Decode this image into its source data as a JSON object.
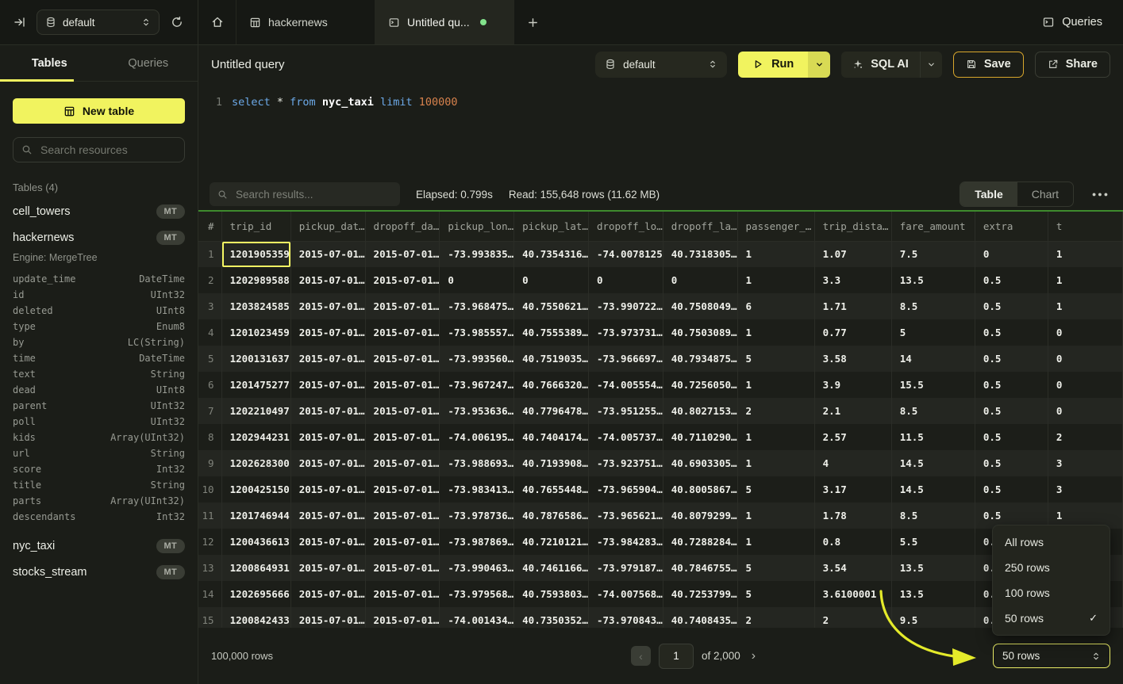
{
  "topbar": {
    "database_selector": "default",
    "tabs": [
      {
        "label": "hackernews"
      },
      {
        "label": "Untitled qu...",
        "active": true,
        "unsaved_dot": true
      }
    ],
    "queries_link": "Queries"
  },
  "sidebar": {
    "tabs": [
      "Tables",
      "Queries"
    ],
    "new_table_label": "New table",
    "search_placeholder": "Search resources",
    "section_label": "Tables (4)",
    "tables": [
      {
        "name": "cell_towers",
        "badge": "MT"
      },
      {
        "name": "hackernews",
        "badge": "MT",
        "engine": "Engine: MergeTree",
        "columns": [
          [
            "update_time",
            "DateTime"
          ],
          [
            "id",
            "UInt32"
          ],
          [
            "deleted",
            "UInt8"
          ],
          [
            "type",
            "Enum8"
          ],
          [
            "by",
            "LC(String)"
          ],
          [
            "time",
            "DateTime"
          ],
          [
            "text",
            "String"
          ],
          [
            "dead",
            "UInt8"
          ],
          [
            "parent",
            "UInt32"
          ],
          [
            "poll",
            "UInt32"
          ],
          [
            "kids",
            "Array(UInt32)"
          ],
          [
            "url",
            "String"
          ],
          [
            "score",
            "Int32"
          ],
          [
            "title",
            "String"
          ],
          [
            "parts",
            "Array(UInt32)"
          ],
          [
            "descendants",
            "Int32"
          ]
        ]
      },
      {
        "name": "nyc_taxi",
        "badge": "MT"
      },
      {
        "name": "stocks_stream",
        "badge": "MT"
      }
    ]
  },
  "query": {
    "title": "Untitled query",
    "database": "default",
    "run_label": "Run",
    "sql_ai_label": "SQL AI",
    "save_label": "Save",
    "share_label": "Share",
    "editor": {
      "line_number": "1",
      "tokens": [
        {
          "text": "select ",
          "type": "keyword"
        },
        {
          "text": "* ",
          "type": "plain"
        },
        {
          "text": "from ",
          "type": "keyword"
        },
        {
          "text": "nyc_taxi ",
          "type": "identifier"
        },
        {
          "text": "limit ",
          "type": "keyword"
        },
        {
          "text": "100000",
          "type": "number"
        }
      ]
    }
  },
  "results": {
    "search_placeholder": "Search results...",
    "elapsed": "Elapsed: 0.799s",
    "read": "Read: 155,648 rows (11.62 MB)",
    "view_toggle": [
      "Table",
      "Chart"
    ],
    "active_view": "Table",
    "table": {
      "headers": [
        "#",
        "trip_id",
        "pickup_dat…",
        "dropoff_da…",
        "pickup_lon…",
        "pickup_lat…",
        "dropoff_lo…",
        "dropoff_la…",
        "passenger_…",
        "trip_dista…",
        "fare_amount",
        "extra",
        "t"
      ],
      "selected_cell": {
        "row": 0,
        "col": 0
      },
      "rows": [
        [
          "1201905359",
          "2015-07-01…",
          "2015-07-01…",
          "-73.993835…",
          "40.7354316…",
          "-74.0078125",
          "40.7318305…",
          "1",
          "1.07",
          "7.5",
          "0",
          "1"
        ],
        [
          "1202989588",
          "2015-07-01…",
          "2015-07-01…",
          "0",
          "0",
          "0",
          "0",
          "1",
          "3.3",
          "13.5",
          "0.5",
          "1"
        ],
        [
          "1203824585",
          "2015-07-01…",
          "2015-07-01…",
          "-73.968475…",
          "40.7550621…",
          "-73.990722…",
          "40.7508049…",
          "6",
          "1.71",
          "8.5",
          "0.5",
          "1"
        ],
        [
          "1201023459",
          "2015-07-01…",
          "2015-07-01…",
          "-73.985557…",
          "40.7555389…",
          "-73.973731…",
          "40.7503089…",
          "1",
          "0.77",
          "5",
          "0.5",
          "0"
        ],
        [
          "1200131637",
          "2015-07-01…",
          "2015-07-01…",
          "-73.993560…",
          "40.7519035…",
          "-73.966697…",
          "40.7934875…",
          "5",
          "3.58",
          "14",
          "0.5",
          "0"
        ],
        [
          "1201475277",
          "2015-07-01…",
          "2015-07-01…",
          "-73.967247…",
          "40.7666320…",
          "-74.005554…",
          "40.7256050…",
          "1",
          "3.9",
          "15.5",
          "0.5",
          "0"
        ],
        [
          "1202210497",
          "2015-07-01…",
          "2015-07-01…",
          "-73.953636…",
          "40.7796478…",
          "-73.951255…",
          "40.8027153…",
          "2",
          "2.1",
          "8.5",
          "0.5",
          "0"
        ],
        [
          "1202944231",
          "2015-07-01…",
          "2015-07-01…",
          "-74.006195…",
          "40.7404174…",
          "-74.005737…",
          "40.7110290…",
          "1",
          "2.57",
          "11.5",
          "0.5",
          "2"
        ],
        [
          "1202628300",
          "2015-07-01…",
          "2015-07-01…",
          "-73.988693…",
          "40.7193908…",
          "-73.923751…",
          "40.6903305…",
          "1",
          "4",
          "14.5",
          "0.5",
          "3"
        ],
        [
          "1200425150",
          "2015-07-01…",
          "2015-07-01…",
          "-73.983413…",
          "40.7655448…",
          "-73.965904…",
          "40.8005867…",
          "5",
          "3.17",
          "14.5",
          "0.5",
          "3"
        ],
        [
          "1201746944",
          "2015-07-01…",
          "2015-07-01…",
          "-73.978736…",
          "40.7876586…",
          "-73.965621…",
          "40.8079299…",
          "1",
          "1.78",
          "8.5",
          "0.5",
          "1"
        ],
        [
          "1200436613",
          "2015-07-01…",
          "2015-07-01…",
          "-73.987869…",
          "40.7210121…",
          "-73.984283…",
          "40.7288284…",
          "1",
          "0.8",
          "5.5",
          "0.5",
          ""
        ],
        [
          "1200864931",
          "2015-07-01…",
          "2015-07-01…",
          "-73.990463…",
          "40.7461166…",
          "-73.979187…",
          "40.7846755…",
          "5",
          "3.54",
          "13.5",
          "0.5",
          ""
        ],
        [
          "1202695666",
          "2015-07-01…",
          "2015-07-01…",
          "-73.979568…",
          "40.7593803…",
          "-74.007568…",
          "40.7253799…",
          "5",
          "3.6100001",
          "13.5",
          "0.5",
          ""
        ],
        [
          "1200842433",
          "2015-07-01…",
          "2015-07-01…",
          "-74.001434…",
          "40.7350352…",
          "-73.970843…",
          "40.7408435…",
          "2",
          "2",
          "9.5",
          "0.5",
          ""
        ]
      ]
    },
    "footer": {
      "total": "100,000 rows",
      "page": "1",
      "of_label": "of 2,000",
      "page_size": "50 rows"
    }
  },
  "page_size_menu": {
    "items": [
      {
        "label": "All rows"
      },
      {
        "label": "250 rows"
      },
      {
        "label": "100 rows"
      },
      {
        "label": "50 rows",
        "checked": true
      }
    ]
  },
  "colors": {
    "accent": "#f1f35f",
    "run_split": "#d8da54",
    "save_border": "#d9a72c",
    "green_dot": "#83e38c",
    "table_topline": "#3e8a2d",
    "sql_keyword": "#6ca9e8",
    "sql_number": "#d8824d",
    "annotation_arrow": "#e4ea2a",
    "selection": "#f5f763"
  }
}
